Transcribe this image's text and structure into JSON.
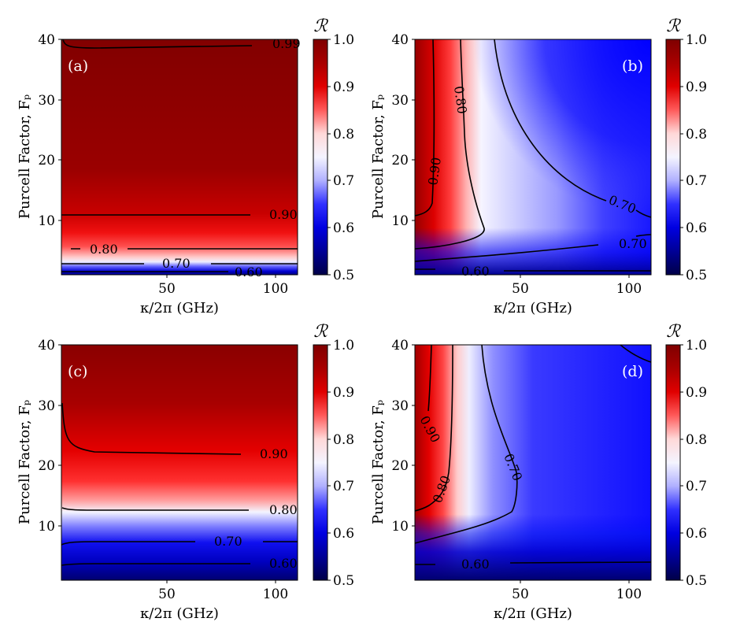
{
  "colorbar": {
    "symbol": "ℛ",
    "ticks": [
      "1.0",
      "0.9",
      "0.8",
      "0.7",
      "0.6",
      "0.5"
    ]
  },
  "chart_data": [
    {
      "type": "heatmap",
      "panel": "(a)",
      "xlabel": "κ/2π (GHz)",
      "ylabel": "Purcell Factor, Fₚ",
      "xlim": [
        1,
        110
      ],
      "ylim": [
        1,
        40
      ],
      "xticks": [
        "50",
        "100"
      ],
      "yticks": [
        "10",
        "20",
        "30",
        "40"
      ],
      "colorbar_label": "ℛ",
      "colorbar_range": [
        0.5,
        1.0
      ],
      "contour_labels": [
        "0.99",
        "0.90",
        "0.80",
        "0.70",
        "0.60"
      ]
    },
    {
      "type": "heatmap",
      "panel": "(b)",
      "xlabel": "κ/2π (GHz)",
      "ylabel": "Purcell Factor, Fₚ",
      "xlim": [
        1,
        110
      ],
      "ylim": [
        1,
        40
      ],
      "xticks": [
        "50",
        "100"
      ],
      "yticks": [
        "10",
        "20",
        "30",
        "40"
      ],
      "colorbar_label": "ℛ",
      "colorbar_range": [
        0.5,
        1.0
      ],
      "contour_labels": [
        "0.90",
        "0.80",
        "0.70",
        "0.70",
        "0.60"
      ]
    },
    {
      "type": "heatmap",
      "panel": "(c)",
      "xlabel": "κ/2π (GHz)",
      "ylabel": "Purcell Factor, Fₚ",
      "xlim": [
        1,
        110
      ],
      "ylim": [
        1,
        40
      ],
      "xticks": [
        "50",
        "100"
      ],
      "yticks": [
        "10",
        "20",
        "30",
        "40"
      ],
      "colorbar_label": "ℛ",
      "colorbar_range": [
        0.5,
        1.0
      ],
      "contour_labels": [
        "0.90",
        "0.80",
        "0.70",
        "0.60"
      ]
    },
    {
      "type": "heatmap",
      "panel": "(d)",
      "xlabel": "κ/2π (GHz)",
      "ylabel": "Purcell Factor, Fₚ",
      "xlim": [
        1,
        110
      ],
      "ylim": [
        1,
        40
      ],
      "xticks": [
        "50",
        "100"
      ],
      "yticks": [
        "10",
        "20",
        "30",
        "40"
      ],
      "colorbar_label": "ℛ",
      "colorbar_range": [
        0.5,
        1.0
      ],
      "contour_labels": [
        "0.90",
        "0.80",
        "0.70",
        "0.60"
      ]
    }
  ]
}
